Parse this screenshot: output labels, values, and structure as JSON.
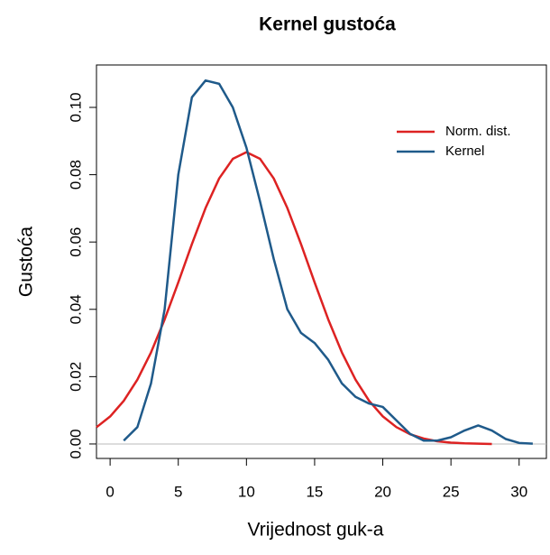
{
  "chart_data": {
    "type": "line",
    "title": "Kernel gustoća",
    "xlabel": "Vrijednost guk-a",
    "ylabel": "Gustoća",
    "x": [
      -1,
      0,
      1,
      2,
      3,
      4,
      5,
      6,
      7,
      8,
      9,
      10,
      11,
      12,
      13,
      14,
      15,
      16,
      17,
      18,
      19,
      20,
      21,
      22,
      23,
      24,
      25,
      26,
      27,
      28,
      29,
      30,
      31
    ],
    "series": [
      {
        "name": "Norm. dist.",
        "color": "#dd2222",
        "values": [
          0.00497,
          0.00816,
          0.0128,
          0.0191,
          0.0272,
          0.037,
          0.048,
          0.0594,
          0.0701,
          0.0789,
          0.0847,
          0.0867,
          0.0847,
          0.0789,
          0.0701,
          0.0594,
          0.048,
          0.037,
          0.0272,
          0.0191,
          0.0128,
          0.0082,
          0.005,
          0.0029,
          0.0016,
          0.0008,
          0.0004,
          0.0002,
          0.0001,
          0.0,
          null,
          null,
          null
        ]
      },
      {
        "name": "Kernel",
        "color": "#1f5a8a",
        "values": [
          null,
          null,
          0.001,
          0.005,
          0.018,
          0.04,
          0.08,
          0.103,
          0.108,
          0.107,
          0.1,
          0.088,
          0.072,
          0.055,
          0.04,
          0.033,
          0.03,
          0.025,
          0.018,
          0.014,
          0.012,
          0.011,
          0.007,
          0.003,
          0.001,
          0.001,
          0.002,
          0.004,
          0.0055,
          0.004,
          0.0015,
          0.0003,
          0.0001
        ]
      }
    ],
    "xlim": [
      -1,
      32
    ],
    "ylim": [
      -0.0043,
      0.1126
    ],
    "xticks": [
      0,
      5,
      10,
      15,
      20,
      25,
      30
    ],
    "yticks": [
      {
        "value": 0,
        "label": "0.00"
      },
      {
        "value": 0.02,
        "label": "0.02"
      },
      {
        "value": 0.04,
        "label": "0.04"
      },
      {
        "value": 0.06,
        "label": "0.06"
      },
      {
        "value": 0.08,
        "label": "0.08"
      },
      {
        "value": 0.1,
        "label": "0.10"
      }
    ],
    "legend": "top-right"
  }
}
